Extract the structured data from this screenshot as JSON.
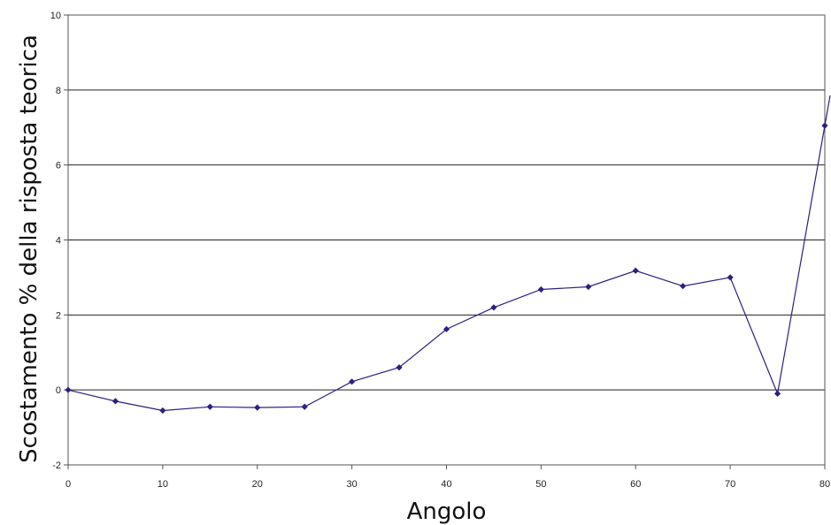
{
  "chart_data": {
    "type": "line",
    "xlabel": "Angolo",
    "ylabel": "Scostamento % della risposta teorica",
    "xlim": [
      0,
      80
    ],
    "ylim": [
      -2,
      10
    ],
    "x_ticks": [
      "0",
      "10",
      "20",
      "30",
      "40",
      "50",
      "60",
      "70",
      "80"
    ],
    "y_ticks": [
      "-2",
      "0",
      "2",
      "4",
      "6",
      "8",
      "10"
    ],
    "grid": "horizontal",
    "series": [
      {
        "color": "#2e1f80",
        "marker": "diamond",
        "x": [
          0,
          5,
          10,
          15,
          20,
          25,
          30,
          35,
          40,
          45,
          50,
          55,
          60,
          65,
          70,
          75,
          80
        ],
        "values": [
          0.0,
          -0.3,
          -0.55,
          -0.45,
          -0.47,
          -0.45,
          0.22,
          0.6,
          1.62,
          2.2,
          2.68,
          2.75,
          3.18,
          2.77,
          3.0,
          -0.1,
          7.05
        ]
      }
    ]
  }
}
